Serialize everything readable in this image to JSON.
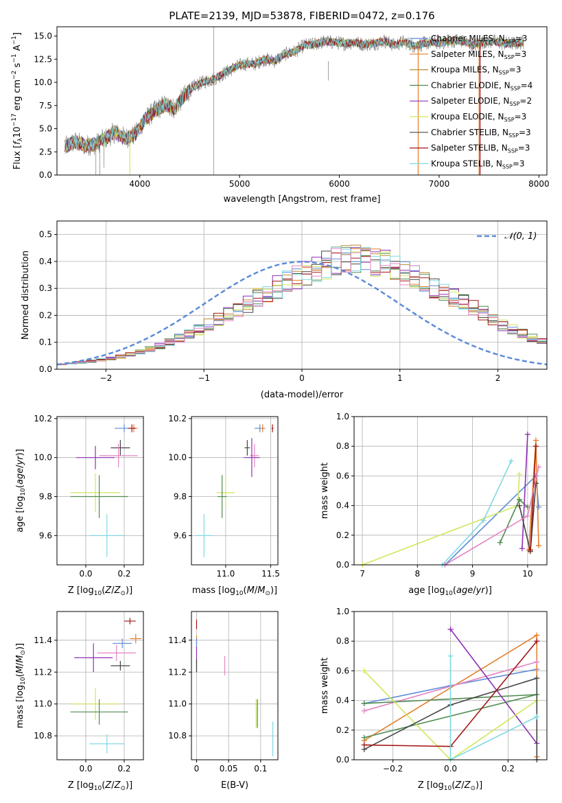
{
  "colors": {
    "Chabrier MILES": "#5b8bd9",
    "Salpeter MILES": "#e47f2a",
    "Kroupa MILES": "#b98a32",
    "Chabrier ELODIE": "#4f8a4f",
    "Salpeter ELODIE": "#8e2fb3",
    "Kroupa ELODIE": "#cde85a",
    "Chabrier STELIB": "#444444",
    "Salpeter STELIB": "#a31515",
    "Kroupa STELIB": "#7fd8e2",
    "extra_pink": "#e584c2",
    "normal_curve": "#5b8bd9"
  },
  "chart_data": [
    {
      "id": "spectrum",
      "type": "line",
      "title": "PLATE=2139, MJD=53878, FIBERID=0472, z=0.176",
      "xlabel": "wavelength [Angstrom, rest frame]",
      "ylabel": "Flux [fλ10⁻¹⁷ erg cm⁻² s⁻¹ A⁻¹]",
      "xlim": [
        3170,
        8080
      ],
      "ylim": [
        0,
        16
      ],
      "xticks": [
        4000,
        5000,
        6000,
        7000,
        8000
      ],
      "yticks": [
        0.0,
        2.5,
        5.0,
        7.5,
        10.0,
        12.5,
        15.0
      ],
      "grid": false,
      "legend_position": "top-right",
      "continuum": [
        [
          3250,
          3.0
        ],
        [
          3350,
          3.6
        ],
        [
          3450,
          3.2
        ],
        [
          3550,
          3.3
        ],
        [
          3650,
          3.9
        ],
        [
          3750,
          4.6
        ],
        [
          3850,
          4.0
        ],
        [
          3950,
          4.3
        ],
        [
          4050,
          6.0
        ],
        [
          4150,
          6.9
        ],
        [
          4250,
          7.6
        ],
        [
          4350,
          7.2
        ],
        [
          4450,
          8.6
        ],
        [
          4550,
          9.6
        ],
        [
          4650,
          10.1
        ],
        [
          4750,
          10.4
        ],
        [
          4850,
          11.0
        ],
        [
          4950,
          11.6
        ],
        [
          5050,
          12.0
        ],
        [
          5150,
          12.0
        ],
        [
          5250,
          12.5
        ],
        [
          5350,
          12.3
        ],
        [
          5450,
          13.0
        ],
        [
          5550,
          13.3
        ],
        [
          5650,
          14.0
        ],
        [
          5750,
          14.1
        ],
        [
          5850,
          14.4
        ],
        [
          5950,
          14.3
        ],
        [
          6050,
          14.2
        ],
        [
          6150,
          14.3
        ],
        [
          6250,
          14.1
        ],
        [
          6350,
          14.2
        ],
        [
          6450,
          14.5
        ],
        [
          6550,
          14.0
        ],
        [
          6650,
          14.4
        ],
        [
          6750,
          13.9
        ],
        [
          6850,
          14.2
        ],
        [
          6950,
          14.3
        ],
        [
          7050,
          14.3
        ],
        [
          7150,
          14.5
        ],
        [
          7250,
          14.4
        ],
        [
          7350,
          14.0
        ],
        [
          7450,
          14.4
        ],
        [
          7550,
          14.4
        ],
        [
          7650,
          14.2
        ],
        [
          7750,
          14.2
        ],
        [
          7850,
          14.3
        ]
      ],
      "series": [
        {
          "name": "Chabrier MILES, N_SSP=3",
          "name_main": "Chabrier MILES, N",
          "name_sub": "SSP",
          "name_tail": "=3",
          "color_key": "Chabrier MILES"
        },
        {
          "name": "Salpeter MILES, N_SSP=3",
          "name_main": "Salpeter MILES, N",
          "name_sub": "SSP",
          "name_tail": "=3",
          "color_key": "Salpeter MILES"
        },
        {
          "name": "Kroupa MILES, N_SSP=3",
          "name_main": "Kroupa MILES, N",
          "name_sub": "SSP",
          "name_tail": "=3",
          "color_key": "Kroupa MILES"
        },
        {
          "name": "Chabrier ELODIE, N_SSP=4",
          "name_main": "Chabrier ELODIE, N",
          "name_sub": "SSP",
          "name_tail": "=4",
          "color_key": "Chabrier ELODIE"
        },
        {
          "name": "Salpeter ELODIE, N_SSP=2",
          "name_main": "Salpeter ELODIE, N",
          "name_sub": "SSP",
          "name_tail": "=2",
          "color_key": "Salpeter ELODIE"
        },
        {
          "name": "Kroupa ELODIE, N_SSP=3",
          "name_main": "Kroupa ELODIE, N",
          "name_sub": "SSP",
          "name_tail": "=3",
          "color_key": "Kroupa ELODIE"
        },
        {
          "name": "Chabrier STELIB, N_SSP=3",
          "name_main": "Chabrier STELIB, N",
          "name_sub": "SSP",
          "name_tail": "=3",
          "color_key": "Chabrier STELIB"
        },
        {
          "name": "Salpeter STELIB, N_SSP=3",
          "name_main": "Salpeter STELIB, N",
          "name_sub": "SSP",
          "name_tail": "=3",
          "color_key": "Salpeter STELIB"
        },
        {
          "name": "Kroupa STELIB, N_SSP=3",
          "name_main": "Kroupa STELIB, N",
          "name_sub": "SSP",
          "name_tail": "=3",
          "color_key": "Kroupa STELIB"
        }
      ]
    },
    {
      "id": "residuals",
      "type": "line",
      "xlabel": "(data-model)/error",
      "ylabel": "Normed distribution",
      "xlim": [
        -2.5,
        2.5
      ],
      "ylim": [
        0,
        0.55
      ],
      "xticks": [
        -2,
        -1,
        0,
        1,
        2
      ],
      "yticks": [
        0.0,
        0.1,
        0.2,
        0.3,
        0.4,
        0.5
      ],
      "grid": true,
      "legend_position": "top-right",
      "legend_label": "𝒩(0, 1)",
      "bin_width": 0.1,
      "base_hist": [
        0.018,
        0.022,
        0.026,
        0.03,
        0.035,
        0.04,
        0.047,
        0.055,
        0.064,
        0.075,
        0.087,
        0.1,
        0.115,
        0.131,
        0.148,
        0.166,
        0.185,
        0.205,
        0.225,
        0.245,
        0.265,
        0.285,
        0.305,
        0.325,
        0.343,
        0.36,
        0.375,
        0.388,
        0.398,
        0.405,
        0.408,
        0.405,
        0.398,
        0.388,
        0.375,
        0.36,
        0.343,
        0.325,
        0.305,
        0.285,
        0.265,
        0.245,
        0.225,
        0.205,
        0.185,
        0.166,
        0.148,
        0.131,
        0.115,
        0.1,
        0.087,
        0.075,
        0.064,
        0.055,
        0.047,
        0.04,
        0.035,
        0.03,
        0.026,
        0.022
      ],
      "histogram_colors": [
        "Chabrier MILES",
        "Salpeter MILES",
        "Kroupa MILES",
        "Chabrier ELODIE",
        "Salpeter ELODIE",
        "Kroupa ELODIE",
        "Chabrier STELIB",
        "Salpeter STELIB",
        "Kroupa STELIB",
        "extra_pink"
      ]
    },
    {
      "id": "z_age",
      "type": "scatter",
      "xlabel": "Z [log10(Z/Z⊙)]",
      "ylabel": "age [log10(age/yr)]",
      "xlim": [
        -0.15,
        0.3
      ],
      "ylim": [
        9.45,
        10.21
      ],
      "xticks": [
        0.0,
        0.2
      ],
      "yticks": [
        9.6,
        9.8,
        10.0,
        10.2
      ],
      "grid": true,
      "points": [
        {
          "x": 0.2,
          "y": 10.15,
          "xerr": 0.05,
          "yerr": 0.02,
          "c": "Chabrier MILES"
        },
        {
          "x": 0.25,
          "y": 10.15,
          "xerr": 0.02,
          "yerr": 0.02,
          "c": "Salpeter MILES"
        },
        {
          "x": 0.24,
          "y": 10.15,
          "xerr": 0.02,
          "yerr": 0.02,
          "c": "Salpeter STELIB"
        },
        {
          "x": 0.18,
          "y": 10.05,
          "xerr": 0.05,
          "yerr": 0.04,
          "c": "Chabrier STELIB"
        },
        {
          "x": 0.17,
          "y": 10.01,
          "xerr": 0.1,
          "yerr": 0.06,
          "c": "extra_pink"
        },
        {
          "x": 0.05,
          "y": 10.0,
          "xerr": 0.1,
          "yerr": 0.06,
          "c": "Salpeter ELODIE"
        },
        {
          "x": 0.05,
          "y": 9.82,
          "xerr": 0.13,
          "yerr": 0.1,
          "c": "Kroupa ELODIE"
        },
        {
          "x": 0.07,
          "y": 9.8,
          "xerr": 0.15,
          "yerr": 0.11,
          "c": "Chabrier ELODIE"
        },
        {
          "x": 0.11,
          "y": 9.6,
          "xerr": 0.09,
          "yerr": 0.11,
          "c": "Kroupa STELIB"
        }
      ]
    },
    {
      "id": "mass_age",
      "type": "scatter",
      "xlabel": "mass [log10(M/M⊙)]",
      "xlim": [
        10.62,
        11.58
      ],
      "ylim": [
        9.45,
        10.21
      ],
      "xticks": [
        11.0,
        11.5
      ],
      "yticks": [
        9.6,
        9.8,
        10.0,
        10.2
      ],
      "grid": true,
      "points": [
        {
          "x": 11.38,
          "y": 10.15,
          "xerr": 0.06,
          "yerr": 0.02,
          "c": "Chabrier MILES"
        },
        {
          "x": 11.41,
          "y": 10.15,
          "xerr": 0.02,
          "yerr": 0.02,
          "c": "Salpeter MILES"
        },
        {
          "x": 11.52,
          "y": 10.15,
          "xerr": 0.01,
          "yerr": 0.02,
          "c": "Salpeter STELIB"
        },
        {
          "x": 11.24,
          "y": 10.05,
          "xerr": 0.03,
          "yerr": 0.04,
          "c": "Chabrier STELIB"
        },
        {
          "x": 11.32,
          "y": 10.01,
          "xerr": 0.05,
          "yerr": 0.06,
          "c": "extra_pink"
        },
        {
          "x": 11.29,
          "y": 10.0,
          "xerr": 0.09,
          "yerr": 0.1,
          "c": "Salpeter ELODIE"
        },
        {
          "x": 11.0,
          "y": 9.82,
          "xerr": 0.1,
          "yerr": 0.08,
          "c": "Kroupa ELODIE"
        },
        {
          "x": 10.96,
          "y": 9.8,
          "xerr": 0.05,
          "yerr": 0.11,
          "c": "Chabrier ELODIE"
        },
        {
          "x": 10.76,
          "y": 9.6,
          "xerr": 0.1,
          "yerr": 0.11,
          "c": "Kroupa STELIB"
        }
      ]
    },
    {
      "id": "age_weight",
      "type": "line",
      "xlabel": "age  [log10(age/yr)]",
      "ylabel": "mass weight",
      "xlim": [
        6.85,
        10.35
      ],
      "ylim": [
        0,
        1.0
      ],
      "xticks": [
        7,
        8,
        9,
        10
      ],
      "yticks": [
        0.0,
        0.2,
        0.4,
        0.6,
        0.8,
        1.0
      ],
      "grid": true,
      "series": [
        {
          "c": "Chabrier MILES",
          "points": [
            [
              8.5,
              0.0
            ],
            [
              10.15,
              0.6
            ],
            [
              10.2,
              0.39
            ]
          ]
        },
        {
          "c": "Salpeter MILES",
          "points": [
            [
              10.02,
              0.1
            ],
            [
              10.15,
              0.84
            ],
            [
              10.2,
              0.13
            ]
          ]
        },
        {
          "c": "Kroupa ELODIE",
          "points": [
            [
              7.0,
              0.0
            ],
            [
              9.82,
              0.4
            ],
            [
              9.85,
              0.61
            ]
          ]
        },
        {
          "c": "Chabrier ELODIE",
          "points": [
            [
              9.5,
              0.15
            ],
            [
              9.85,
              0.44
            ],
            [
              10.0,
              0.39
            ]
          ]
        },
        {
          "c": "Salpeter ELODIE",
          "points": [
            [
              9.9,
              0.11
            ],
            [
              10.0,
              0.88
            ]
          ]
        },
        {
          "c": "Chabrier STELIB",
          "points": [
            [
              9.85,
              0.4
            ],
            [
              10.05,
              0.09
            ],
            [
              10.15,
              0.55
            ]
          ]
        },
        {
          "c": "Salpeter STELIB",
          "points": [
            [
              10.05,
              0.1
            ],
            [
              10.15,
              0.8
            ]
          ]
        },
        {
          "c": "Kroupa STELIB",
          "points": [
            [
              8.45,
              0.0
            ],
            [
              9.2,
              0.3
            ],
            [
              9.7,
              0.7
            ]
          ]
        },
        {
          "c": "extra_pink",
          "points": [
            [
              8.5,
              0.0
            ],
            [
              10.0,
              0.33
            ],
            [
              10.2,
              0.66
            ]
          ]
        }
      ]
    },
    {
      "id": "z_mass",
      "type": "scatter",
      "xlabel": "Z [log10(Z/Z⊙)]",
      "ylabel": "mass [log10(M/M⊙)]",
      "xlim": [
        -0.15,
        0.3
      ],
      "ylim": [
        10.65,
        11.58
      ],
      "xticks": [
        0.0,
        0.2
      ],
      "yticks": [
        10.8,
        11.0,
        11.2,
        11.4
      ],
      "grid": true,
      "points": [
        {
          "x": 0.23,
          "y": 11.52,
          "xerr": 0.03,
          "yerr": 0.02,
          "c": "Salpeter STELIB"
        },
        {
          "x": 0.26,
          "y": 11.41,
          "xerr": 0.03,
          "yerr": 0.03,
          "c": "Salpeter MILES"
        },
        {
          "x": 0.19,
          "y": 11.38,
          "xerr": 0.05,
          "yerr": 0.03,
          "c": "Chabrier MILES"
        },
        {
          "x": 0.16,
          "y": 11.32,
          "xerr": 0.1,
          "yerr": 0.05,
          "c": "extra_pink"
        },
        {
          "x": 0.04,
          "y": 11.29,
          "xerr": 0.1,
          "yerr": 0.09,
          "c": "Salpeter ELODIE"
        },
        {
          "x": 0.18,
          "y": 11.24,
          "xerr": 0.05,
          "yerr": 0.03,
          "c": "Chabrier STELIB"
        },
        {
          "x": 0.05,
          "y": 11.0,
          "xerr": 0.13,
          "yerr": 0.1,
          "c": "Kroupa ELODIE"
        },
        {
          "x": 0.07,
          "y": 10.95,
          "xerr": 0.15,
          "yerr": 0.08,
          "c": "Chabrier ELODIE"
        },
        {
          "x": 0.11,
          "y": 10.75,
          "xerr": 0.09,
          "yerr": 0.06,
          "c": "Kroupa STELIB"
        }
      ]
    },
    {
      "id": "ebv_mass",
      "type": "scatter",
      "xlabel": "E(B-V)",
      "xlim": [
        -0.008,
        0.127
      ],
      "ylim": [
        10.65,
        11.58
      ],
      "xticks": [
        0.0,
        0.05,
        0.1
      ],
      "yticks": [
        10.8,
        11.0,
        11.2,
        11.4
      ],
      "grid": true,
      "points": [
        {
          "x": 0.0,
          "y": 11.5,
          "xerr": 0.0,
          "yerr": 0.03,
          "c": "Salpeter STELIB"
        },
        {
          "x": 0.0,
          "y": 11.4,
          "xerr": 0.0,
          "yerr": 0.03,
          "c": "Salpeter MILES"
        },
        {
          "x": 0.0,
          "y": 11.38,
          "xerr": 0.0,
          "yerr": 0.03,
          "c": "Chabrier MILES"
        },
        {
          "x": 0.0,
          "y": 11.28,
          "xerr": 0.0,
          "yerr": 0.08,
          "c": "Salpeter ELODIE"
        },
        {
          "x": 0.0,
          "y": 11.24,
          "xerr": 0.0,
          "yerr": 0.04,
          "c": "Chabrier STELIB"
        },
        {
          "x": 0.044,
          "y": 11.24,
          "xerr": 0.0,
          "yerr": 0.06,
          "c": "extra_pink"
        },
        {
          "x": 0.093,
          "y": 10.94,
          "xerr": 0.0,
          "yerr": 0.09,
          "c": "Kroupa ELODIE"
        },
        {
          "x": 0.095,
          "y": 10.94,
          "xerr": 0.0,
          "yerr": 0.09,
          "c": "Chabrier ELODIE"
        },
        {
          "x": 0.119,
          "y": 10.78,
          "xerr": 0.0,
          "yerr": 0.11,
          "c": "Kroupa STELIB"
        }
      ]
    },
    {
      "id": "z_weight",
      "type": "line",
      "xlabel": "Z [log10(Z/Z⊙)]",
      "ylabel": "mass weight",
      "xlim": [
        -0.335,
        0.335
      ],
      "ylim": [
        0,
        1.0
      ],
      "xticks": [
        -0.2,
        0.0,
        0.2
      ],
      "yticks": [
        0.0,
        0.2,
        0.4,
        0.6,
        0.8,
        1.0
      ],
      "grid": true,
      "series": [
        {
          "c": "Chabrier MILES",
          "points": [
            [
              -0.3,
              0.38
            ],
            [
              0.0,
              0.5
            ],
            [
              0.3,
              0.61
            ]
          ]
        },
        {
          "c": "Salpeter MILES",
          "points": [
            [
              -0.3,
              0.13
            ],
            [
              0.3,
              0.84
            ],
            [
              0.3,
              0.02
            ]
          ]
        },
        {
          "c": "extra_pink",
          "points": [
            [
              -0.3,
              0.33
            ],
            [
              0.3,
              0.66
            ]
          ]
        },
        {
          "c": "Chabrier ELODIE",
          "points": [
            [
              -0.3,
              0.38
            ],
            [
              0.3,
              0.44
            ],
            [
              -0.3,
              0.15
            ]
          ]
        },
        {
          "c": "Salpeter ELODIE",
          "points": [
            [
              0.0,
              0.88
            ],
            [
              0.3,
              0.11
            ]
          ]
        },
        {
          "c": "Kroupa ELODIE",
          "points": [
            [
              -0.3,
              0.6
            ],
            [
              0.0,
              0.0
            ],
            [
              0.3,
              0.4
            ]
          ]
        },
        {
          "c": "Chabrier STELIB",
          "points": [
            [
              -0.3,
              0.07
            ],
            [
              0.0,
              0.37
            ],
            [
              0.3,
              0.55
            ],
            [
              0.3,
              0.0
            ]
          ]
        },
        {
          "c": "Salpeter STELIB",
          "points": [
            [
              -0.3,
              0.1
            ],
            [
              0.0,
              0.09
            ],
            [
              0.3,
              0.8
            ]
          ]
        },
        {
          "c": "Kroupa STELIB",
          "points": [
            [
              0.0,
              0.7
            ],
            [
              0.0,
              0.0
            ],
            [
              0.3,
              0.29
            ]
          ]
        }
      ]
    }
  ]
}
